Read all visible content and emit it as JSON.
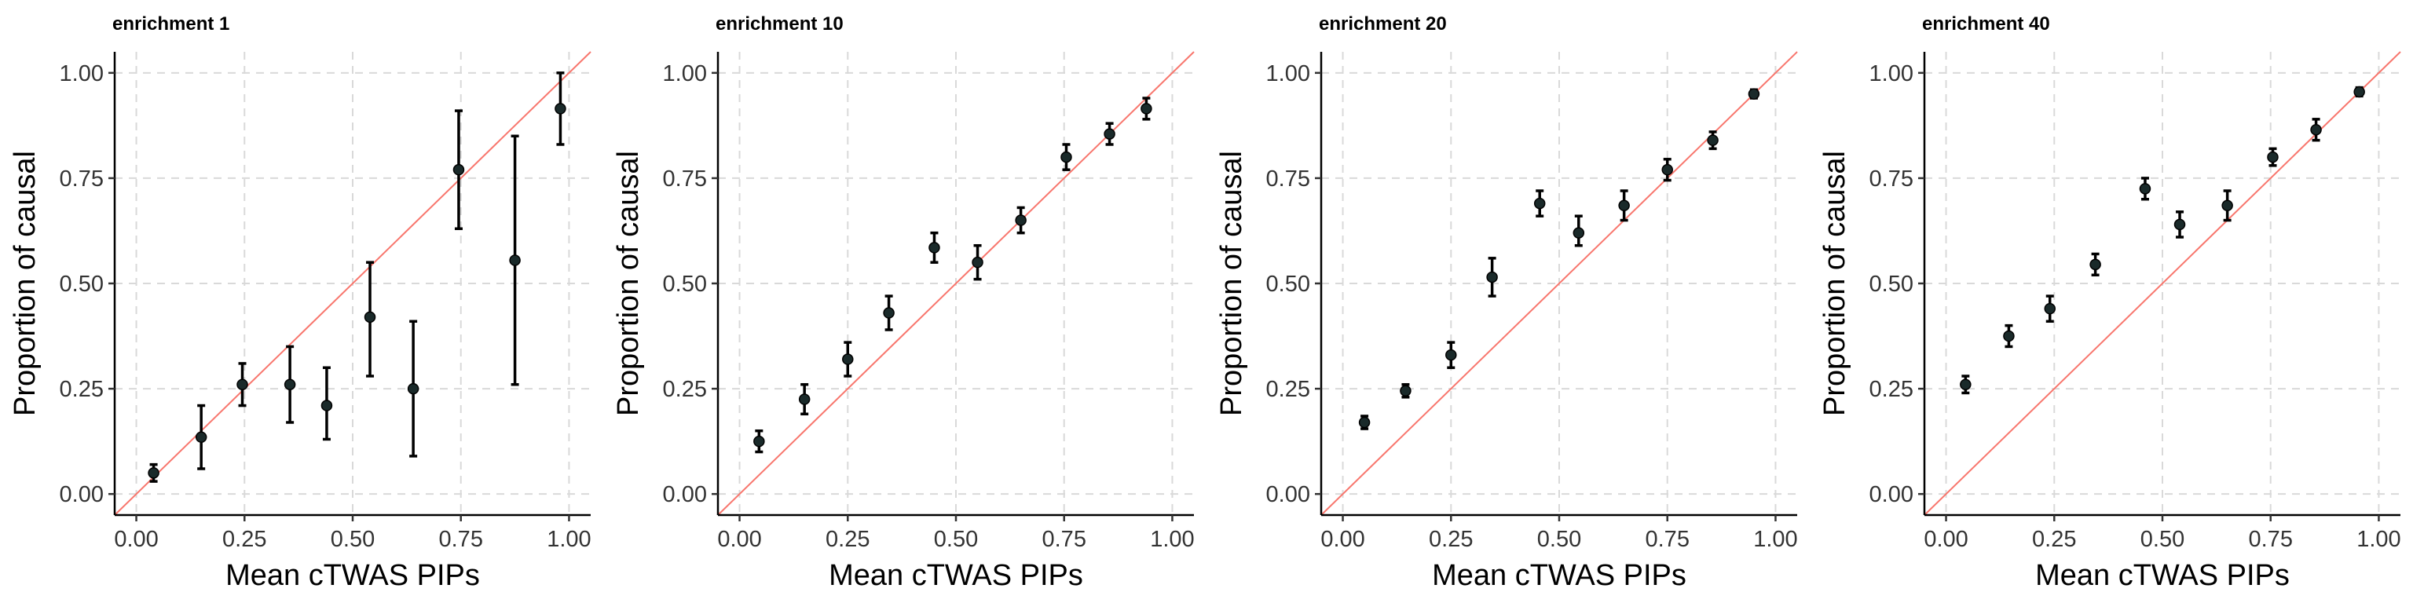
{
  "chart_data": [
    {
      "type": "scatter",
      "title": "enrichment 1",
      "xlabel": "Mean cTWAS PIPs",
      "ylabel": "Proportion of causal",
      "xlim": [
        -0.05,
        1.05
      ],
      "ylim": [
        -0.05,
        1.05
      ],
      "xticks": [
        0.0,
        0.25,
        0.5,
        0.75,
        1.0
      ],
      "xtick_labels": [
        "0.00",
        "0.25",
        "0.50",
        "0.75",
        "1.00"
      ],
      "yticks": [
        0.0,
        0.25,
        0.5,
        0.75,
        1.0
      ],
      "ytick_labels": [
        "0.00",
        "0.25",
        "0.50",
        "0.75",
        "1.00"
      ],
      "reference_line": "y = x",
      "points": [
        {
          "x": 0.04,
          "y": 0.05,
          "lo": 0.03,
          "hi": 0.07
        },
        {
          "x": 0.15,
          "y": 0.135,
          "lo": 0.06,
          "hi": 0.21
        },
        {
          "x": 0.245,
          "y": 0.26,
          "lo": 0.21,
          "hi": 0.31
        },
        {
          "x": 0.355,
          "y": 0.26,
          "lo": 0.17,
          "hi": 0.35
        },
        {
          "x": 0.44,
          "y": 0.21,
          "lo": 0.13,
          "hi": 0.3
        },
        {
          "x": 0.54,
          "y": 0.42,
          "lo": 0.28,
          "hi": 0.55
        },
        {
          "x": 0.64,
          "y": 0.25,
          "lo": 0.09,
          "hi": 0.41
        },
        {
          "x": 0.745,
          "y": 0.77,
          "lo": 0.63,
          "hi": 0.91
        },
        {
          "x": 0.875,
          "y": 0.555,
          "lo": 0.26,
          "hi": 0.85
        },
        {
          "x": 0.98,
          "y": 0.915,
          "lo": 0.83,
          "hi": 1.0
        }
      ]
    },
    {
      "type": "scatter",
      "title": "enrichment 10",
      "xlabel": "Mean cTWAS PIPs",
      "ylabel": "Proportion of causal",
      "xlim": [
        -0.05,
        1.05
      ],
      "ylim": [
        -0.05,
        1.05
      ],
      "xticks": [
        0.0,
        0.25,
        0.5,
        0.75,
        1.0
      ],
      "xtick_labels": [
        "0.00",
        "0.25",
        "0.50",
        "0.75",
        "1.00"
      ],
      "yticks": [
        0.0,
        0.25,
        0.5,
        0.75,
        1.0
      ],
      "ytick_labels": [
        "0.00",
        "0.25",
        "0.50",
        "0.75",
        "1.00"
      ],
      "reference_line": "y = x",
      "points": [
        {
          "x": 0.045,
          "y": 0.125,
          "lo": 0.1,
          "hi": 0.15
        },
        {
          "x": 0.15,
          "y": 0.225,
          "lo": 0.19,
          "hi": 0.26
        },
        {
          "x": 0.25,
          "y": 0.32,
          "lo": 0.28,
          "hi": 0.36
        },
        {
          "x": 0.345,
          "y": 0.43,
          "lo": 0.39,
          "hi": 0.47
        },
        {
          "x": 0.45,
          "y": 0.585,
          "lo": 0.55,
          "hi": 0.62
        },
        {
          "x": 0.55,
          "y": 0.55,
          "lo": 0.51,
          "hi": 0.59
        },
        {
          "x": 0.65,
          "y": 0.65,
          "lo": 0.62,
          "hi": 0.68
        },
        {
          "x": 0.755,
          "y": 0.8,
          "lo": 0.77,
          "hi": 0.83
        },
        {
          "x": 0.855,
          "y": 0.855,
          "lo": 0.83,
          "hi": 0.88
        },
        {
          "x": 0.94,
          "y": 0.915,
          "lo": 0.89,
          "hi": 0.94
        }
      ]
    },
    {
      "type": "scatter",
      "title": "enrichment 20",
      "xlabel": "Mean cTWAS PIPs",
      "ylabel": "Proportion of causal",
      "xlim": [
        -0.05,
        1.05
      ],
      "ylim": [
        -0.05,
        1.05
      ],
      "xticks": [
        0.0,
        0.25,
        0.5,
        0.75,
        1.0
      ],
      "xtick_labels": [
        "0.00",
        "0.25",
        "0.50",
        "0.75",
        "1.00"
      ],
      "yticks": [
        0.0,
        0.25,
        0.5,
        0.75,
        1.0
      ],
      "ytick_labels": [
        "0.00",
        "0.25",
        "0.50",
        "0.75",
        "1.00"
      ],
      "reference_line": "y = x",
      "points": [
        {
          "x": 0.05,
          "y": 0.17,
          "lo": 0.155,
          "hi": 0.185
        },
        {
          "x": 0.145,
          "y": 0.245,
          "lo": 0.23,
          "hi": 0.26
        },
        {
          "x": 0.25,
          "y": 0.33,
          "lo": 0.3,
          "hi": 0.36
        },
        {
          "x": 0.345,
          "y": 0.515,
          "lo": 0.47,
          "hi": 0.56
        },
        {
          "x": 0.455,
          "y": 0.69,
          "lo": 0.66,
          "hi": 0.72
        },
        {
          "x": 0.545,
          "y": 0.62,
          "lo": 0.59,
          "hi": 0.66
        },
        {
          "x": 0.65,
          "y": 0.685,
          "lo": 0.65,
          "hi": 0.72
        },
        {
          "x": 0.75,
          "y": 0.77,
          "lo": 0.745,
          "hi": 0.795
        },
        {
          "x": 0.855,
          "y": 0.84,
          "lo": 0.82,
          "hi": 0.86
        },
        {
          "x": 0.95,
          "y": 0.95,
          "lo": 0.94,
          "hi": 0.96
        }
      ]
    },
    {
      "type": "scatter",
      "title": "enrichment 40",
      "xlabel": "Mean cTWAS PIPs",
      "ylabel": "Proportion of causal",
      "xlim": [
        -0.05,
        1.05
      ],
      "ylim": [
        -0.05,
        1.05
      ],
      "xticks": [
        0.0,
        0.25,
        0.5,
        0.75,
        1.0
      ],
      "xtick_labels": [
        "0.00",
        "0.25",
        "0.50",
        "0.75",
        "1.00"
      ],
      "yticks": [
        0.0,
        0.25,
        0.5,
        0.75,
        1.0
      ],
      "ytick_labels": [
        "0.00",
        "0.25",
        "0.50",
        "0.75",
        "1.00"
      ],
      "reference_line": "y = x",
      "points": [
        {
          "x": 0.045,
          "y": 0.26,
          "lo": 0.24,
          "hi": 0.28
        },
        {
          "x": 0.145,
          "y": 0.375,
          "lo": 0.35,
          "hi": 0.4
        },
        {
          "x": 0.24,
          "y": 0.44,
          "lo": 0.41,
          "hi": 0.47
        },
        {
          "x": 0.345,
          "y": 0.545,
          "lo": 0.52,
          "hi": 0.57
        },
        {
          "x": 0.46,
          "y": 0.725,
          "lo": 0.7,
          "hi": 0.75
        },
        {
          "x": 0.54,
          "y": 0.64,
          "lo": 0.61,
          "hi": 0.67
        },
        {
          "x": 0.65,
          "y": 0.685,
          "lo": 0.65,
          "hi": 0.72
        },
        {
          "x": 0.755,
          "y": 0.8,
          "lo": 0.78,
          "hi": 0.82
        },
        {
          "x": 0.855,
          "y": 0.865,
          "lo": 0.84,
          "hi": 0.89
        },
        {
          "x": 0.955,
          "y": 0.955,
          "lo": 0.945,
          "hi": 0.965
        }
      ]
    }
  ],
  "colors": {
    "reference_line": "#f8766d",
    "points": "#1a2a2a",
    "error_bars": "#000000",
    "grid": "#d9d9d9"
  }
}
